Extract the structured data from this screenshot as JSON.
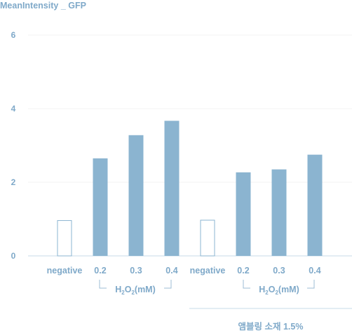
{
  "chart_data": {
    "type": "bar",
    "title": "MeanIntensity _ GFP",
    "ylim": [
      0,
      6
    ],
    "yticks": [
      "0",
      "2",
      "4",
      "6"
    ],
    "grid": true,
    "groups": [
      {
        "group_label": "",
        "sub_label": "H2O2(mM)",
        "categories": [
          "negative",
          "0.2",
          "0.3",
          "0.4"
        ],
        "values": [
          0.97,
          2.65,
          3.28,
          3.67
        ]
      },
      {
        "group_label": "앰블링 소재 1.5%",
        "sub_label": "H2O2(mM)",
        "categories": [
          "negative",
          "0.2",
          "0.3",
          "0.4"
        ],
        "values": [
          0.98,
          2.27,
          2.35,
          2.75
        ]
      }
    ],
    "colors": {
      "filled": "#8bb4d0",
      "outline": "#8bb4d0",
      "text": "#7fa9c9"
    }
  }
}
